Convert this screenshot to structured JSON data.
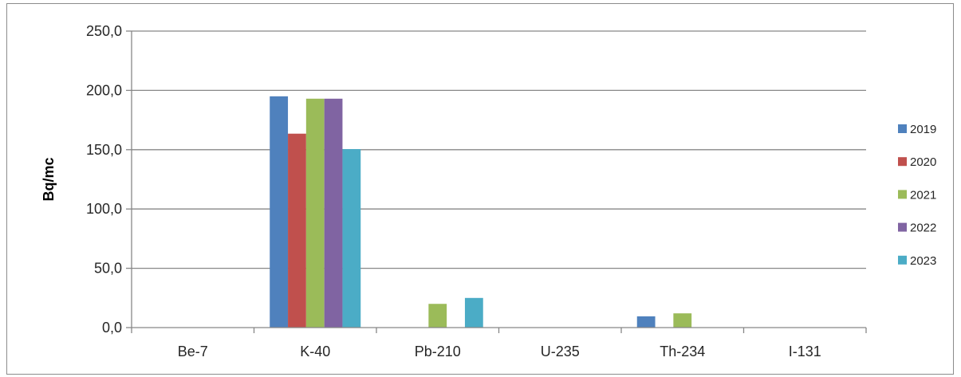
{
  "chart_data": {
    "type": "bar",
    "categories": [
      "Be-7",
      "K-40",
      "Pb-210",
      "U-235",
      "Th-234",
      "I-131"
    ],
    "series": [
      {
        "name": "2019",
        "color": "#4f81bd",
        "values": [
          0,
          195,
          0,
          0,
          9.5,
          0
        ]
      },
      {
        "name": "2020",
        "color": "#c0504d",
        "values": [
          0,
          163.5,
          0,
          0,
          0,
          0
        ]
      },
      {
        "name": "2021",
        "color": "#9bbb59",
        "values": [
          0,
          193,
          20,
          0,
          12,
          0
        ]
      },
      {
        "name": "2022",
        "color": "#8064a2",
        "values": [
          0,
          193,
          0,
          0,
          0,
          0
        ]
      },
      {
        "name": "2023",
        "color": "#4bacc6",
        "values": [
          0,
          150.5,
          25,
          0,
          0,
          0
        ]
      }
    ],
    "yticks": [
      "0,0",
      "50,0",
      "100,0",
      "150,0",
      "200,0",
      "250,0"
    ],
    "ylim": [
      0,
      250
    ],
    "ylabel": "Bq/mc",
    "grid": true,
    "legend": "right"
  }
}
